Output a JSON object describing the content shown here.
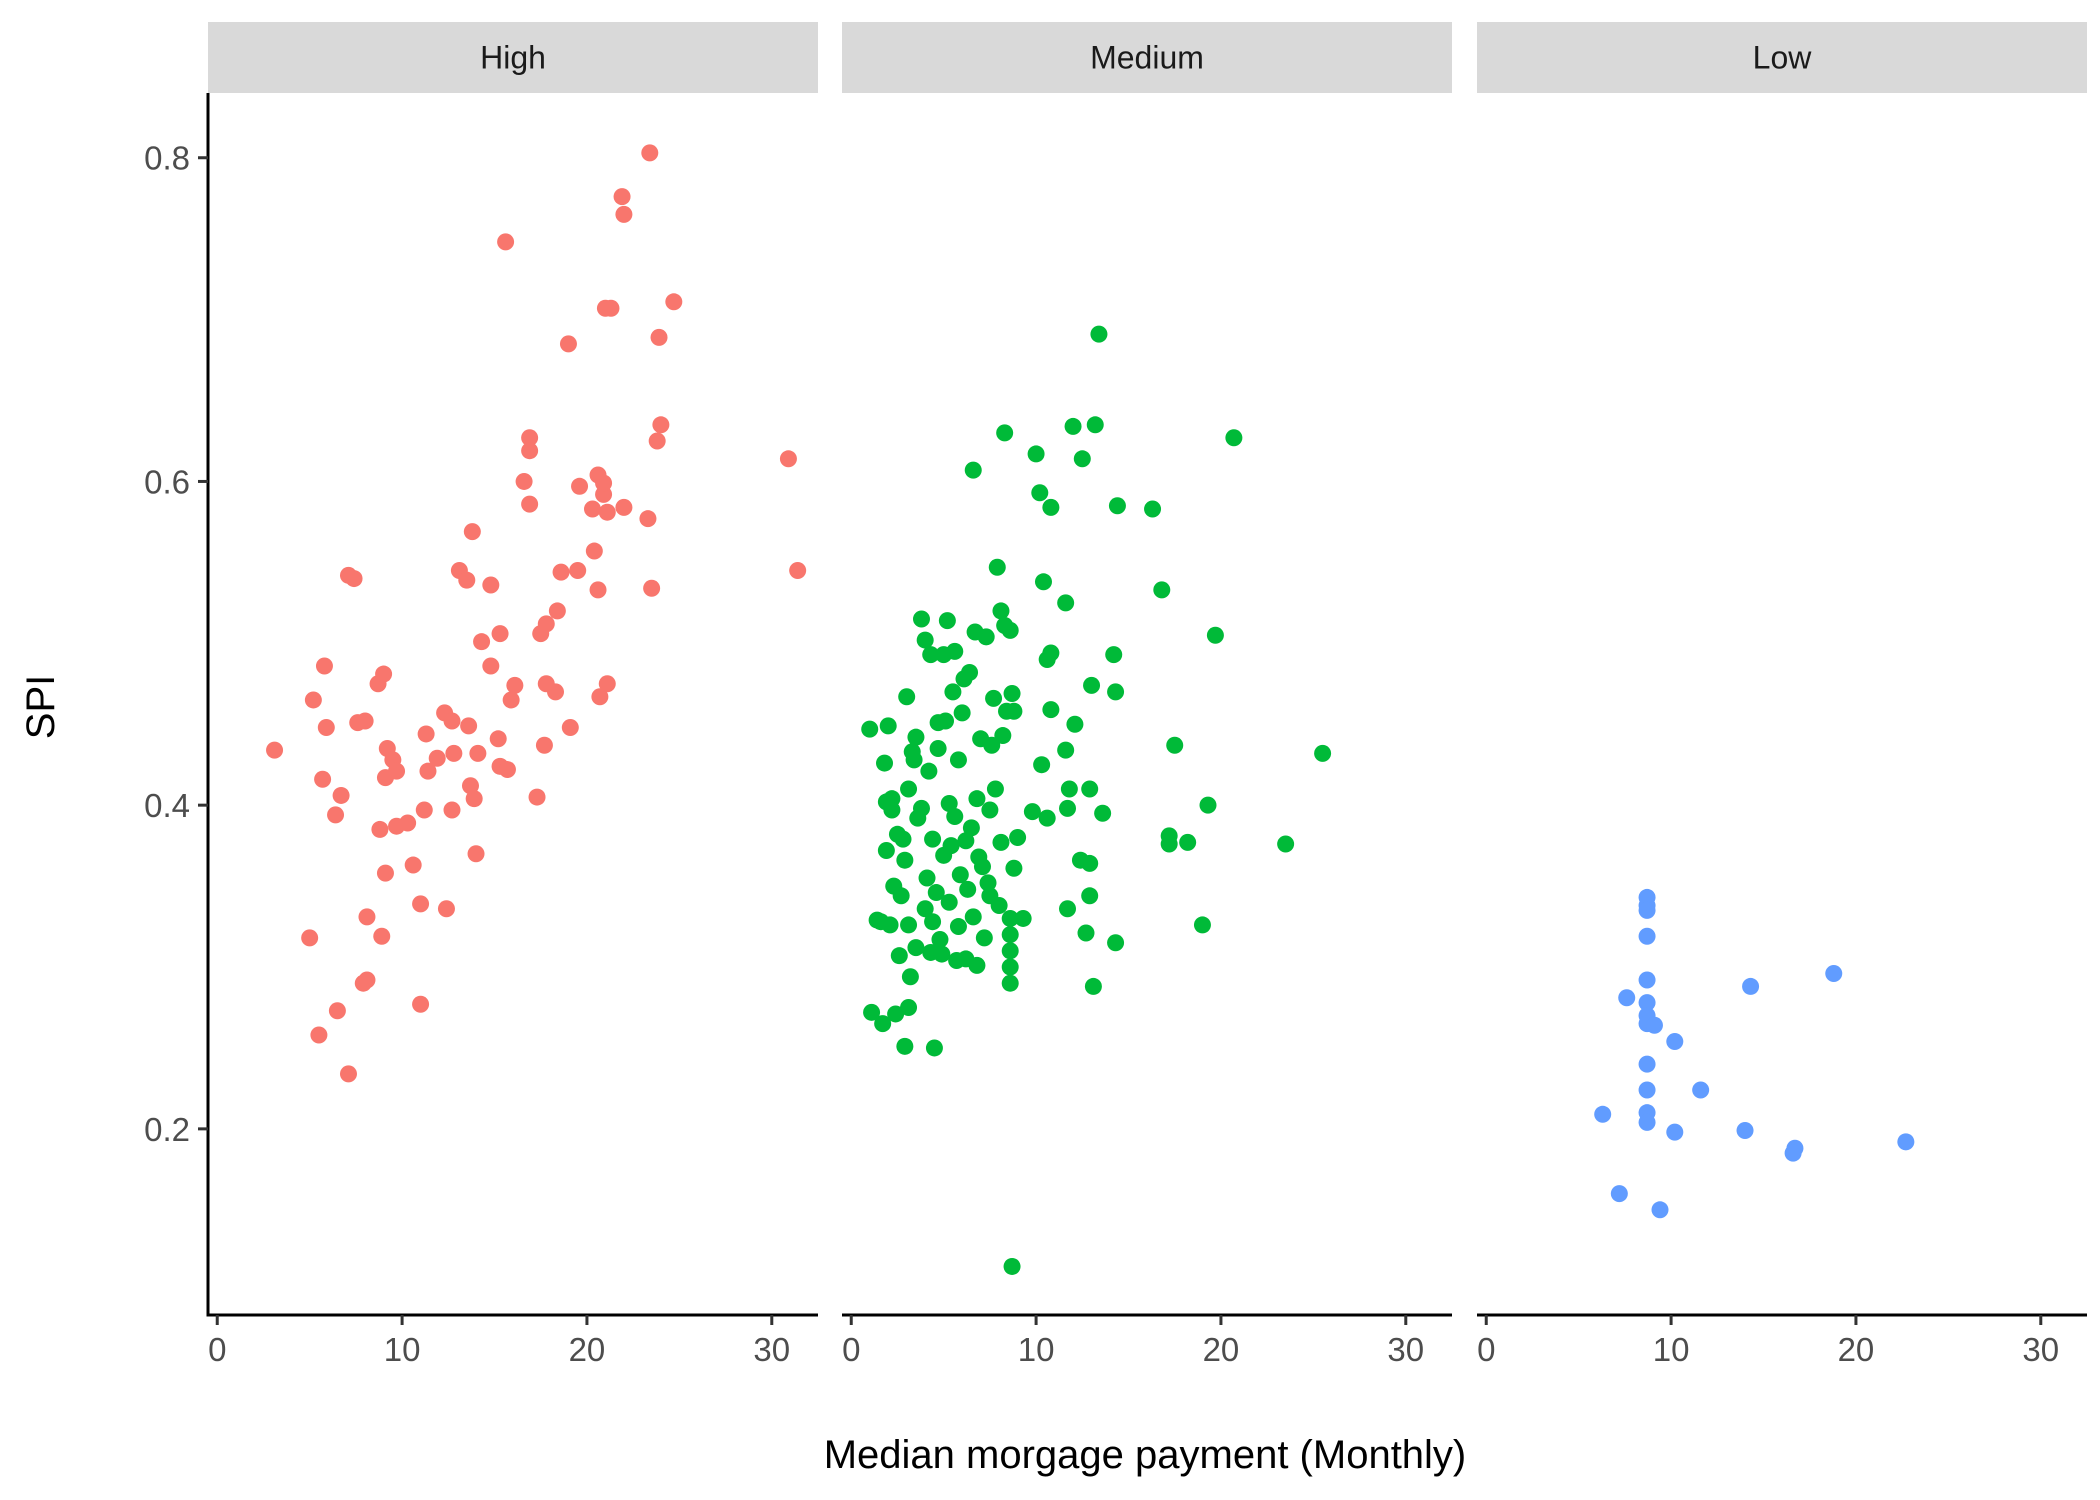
{
  "chart_data": {
    "type": "scatter",
    "title": "",
    "xlabel": "Median morgage payment (Monthly)",
    "ylabel": "SPI",
    "xlim": [
      -0.5,
      32.5
    ],
    "ylim": [
      0.085,
      0.84
    ],
    "x_ticks": [
      0,
      10,
      20,
      30
    ],
    "y_ticks": [
      0.2,
      0.4,
      0.6,
      0.8
    ],
    "x_tick_labels": [
      "0",
      "10",
      "20",
      "30"
    ],
    "y_tick_labels": [
      "0.2",
      "0.4",
      "0.6",
      "0.8"
    ],
    "grid": false,
    "legend": "none",
    "facets": [
      {
        "name": "High",
        "color": "#F8766D",
        "points": [
          [
            3.1,
            0.434
          ],
          [
            5.2,
            0.465
          ],
          [
            5.8,
            0.486
          ],
          [
            5.9,
            0.448
          ],
          [
            5.7,
            0.416
          ],
          [
            6.4,
            0.394
          ],
          [
            6.7,
            0.406
          ],
          [
            7.1,
            0.542
          ],
          [
            7.4,
            0.54
          ],
          [
            7.6,
            0.451
          ],
          [
            8.0,
            0.452
          ],
          [
            8.7,
            0.475
          ],
          [
            9.0,
            0.481
          ],
          [
            9.2,
            0.435
          ],
          [
            9.5,
            0.428
          ],
          [
            9.1,
            0.417
          ],
          [
            9.7,
            0.421
          ],
          [
            8.8,
            0.385
          ],
          [
            9.7,
            0.387
          ],
          [
            10.3,
            0.389
          ],
          [
            9.1,
            0.358
          ],
          [
            10.6,
            0.363
          ],
          [
            11.3,
            0.444
          ],
          [
            11.4,
            0.421
          ],
          [
            11.9,
            0.429
          ],
          [
            12.3,
            0.457
          ],
          [
            12.7,
            0.452
          ],
          [
            12.8,
            0.432
          ],
          [
            13.6,
            0.449
          ],
          [
            13.7,
            0.412
          ],
          [
            14.1,
            0.432
          ],
          [
            11.2,
            0.397
          ],
          [
            12.7,
            0.397
          ],
          [
            13.9,
            0.404
          ],
          [
            14.0,
            0.37
          ],
          [
            13.1,
            0.545
          ],
          [
            13.5,
            0.539
          ],
          [
            13.8,
            0.569
          ],
          [
            14.3,
            0.501
          ],
          [
            14.8,
            0.536
          ],
          [
            14.8,
            0.486
          ],
          [
            15.3,
            0.506
          ],
          [
            15.2,
            0.441
          ],
          [
            15.3,
            0.424
          ],
          [
            15.7,
            0.422
          ],
          [
            15.6,
            0.748
          ],
          [
            15.9,
            0.465
          ],
          [
            16.1,
            0.474
          ],
          [
            16.6,
            0.6
          ],
          [
            16.9,
            0.586
          ],
          [
            16.9,
            0.627
          ],
          [
            16.9,
            0.619
          ],
          [
            17.3,
            0.405
          ],
          [
            17.5,
            0.506
          ],
          [
            17.8,
            0.512
          ],
          [
            17.7,
            0.437
          ],
          [
            17.8,
            0.475
          ],
          [
            18.3,
            0.47
          ],
          [
            18.4,
            0.52
          ],
          [
            18.6,
            0.544
          ],
          [
            19.0,
            0.685
          ],
          [
            19.1,
            0.448
          ],
          [
            19.5,
            0.545
          ],
          [
            19.6,
            0.597
          ],
          [
            20.3,
            0.583
          ],
          [
            20.4,
            0.557
          ],
          [
            20.6,
            0.533
          ],
          [
            20.6,
            0.604
          ],
          [
            20.7,
            0.467
          ],
          [
            20.9,
            0.592
          ],
          [
            20.9,
            0.599
          ],
          [
            21.1,
            0.581
          ],
          [
            21.1,
            0.475
          ],
          [
            21.0,
            0.707
          ],
          [
            21.3,
            0.707
          ],
          [
            21.9,
            0.776
          ],
          [
            22.0,
            0.765
          ],
          [
            22.0,
            0.584
          ],
          [
            23.3,
            0.577
          ],
          [
            23.4,
            0.803
          ],
          [
            23.5,
            0.534
          ],
          [
            23.8,
            0.625
          ],
          [
            23.9,
            0.689
          ],
          [
            24.0,
            0.635
          ],
          [
            24.7,
            0.711
          ],
          [
            30.9,
            0.614
          ],
          [
            31.4,
            0.545
          ],
          [
            5.0,
            0.318
          ],
          [
            5.5,
            0.258
          ],
          [
            7.1,
            0.234
          ],
          [
            6.5,
            0.273
          ],
          [
            8.1,
            0.331
          ],
          [
            7.9,
            0.29
          ],
          [
            8.1,
            0.292
          ],
          [
            8.9,
            0.319
          ],
          [
            11.0,
            0.339
          ],
          [
            11.0,
            0.277
          ],
          [
            12.4,
            0.336
          ]
        ]
      },
      {
        "name": "Medium",
        "color": "#00BA38",
        "points": [
          [
            1.0,
            0.447
          ],
          [
            1.8,
            0.426
          ],
          [
            2.0,
            0.449
          ],
          [
            1.9,
            0.372
          ],
          [
            2.2,
            0.404
          ],
          [
            2.5,
            0.382
          ],
          [
            2.9,
            0.366
          ],
          [
            3.1,
            0.41
          ],
          [
            3.3,
            0.433
          ],
          [
            3.5,
            0.442
          ],
          [
            3.8,
            0.398
          ],
          [
            4.2,
            0.421
          ],
          [
            4.4,
            0.379
          ],
          [
            4.7,
            0.435
          ],
          [
            5.1,
            0.452
          ],
          [
            5.3,
            0.401
          ],
          [
            5.6,
            0.393
          ],
          [
            5.8,
            0.428
          ],
          [
            6.2,
            0.378
          ],
          [
            6.5,
            0.386
          ],
          [
            6.8,
            0.404
          ],
          [
            7.1,
            0.362
          ],
          [
            7.5,
            0.397
          ],
          [
            7.8,
            0.41
          ],
          [
            8.1,
            0.377
          ],
          [
            8.4,
            0.458
          ],
          [
            8.8,
            0.361
          ],
          [
            9.0,
            0.38
          ],
          [
            3.0,
            0.467
          ],
          [
            3.8,
            0.515
          ],
          [
            4.0,
            0.502
          ],
          [
            4.3,
            0.493
          ],
          [
            5.0,
            0.493
          ],
          [
            5.2,
            0.514
          ],
          [
            5.6,
            0.495
          ],
          [
            6.1,
            0.478
          ],
          [
            6.4,
            0.482
          ],
          [
            6.7,
            0.507
          ],
          [
            7.3,
            0.504
          ],
          [
            7.7,
            0.466
          ],
          [
            7.9,
            0.547
          ],
          [
            8.1,
            0.52
          ],
          [
            8.3,
            0.511
          ],
          [
            8.6,
            0.508
          ],
          [
            8.7,
            0.469
          ],
          [
            8.8,
            0.458
          ],
          [
            2.3,
            0.35
          ],
          [
            2.7,
            0.344
          ],
          [
            3.1,
            0.326
          ],
          [
            3.5,
            0.312
          ],
          [
            4.0,
            0.336
          ],
          [
            4.4,
            0.328
          ],
          [
            4.8,
            0.317
          ],
          [
            5.3,
            0.34
          ],
          [
            5.8,
            0.325
          ],
          [
            6.2,
            0.305
          ],
          [
            6.6,
            0.331
          ],
          [
            7.2,
            0.318
          ],
          [
            7.5,
            0.344
          ],
          [
            8.0,
            0.338
          ],
          [
            8.6,
            0.33
          ],
          [
            8.6,
            0.32
          ],
          [
            8.6,
            0.31
          ],
          [
            8.6,
            0.3
          ],
          [
            8.6,
            0.29
          ],
          [
            1.6,
            0.328
          ],
          [
            2.1,
            0.326
          ],
          [
            2.6,
            0.307
          ],
          [
            3.2,
            0.294
          ],
          [
            4.3,
            0.309
          ],
          [
            4.9,
            0.308
          ],
          [
            5.7,
            0.304
          ],
          [
            6.8,
            0.301
          ],
          [
            1.1,
            0.272
          ],
          [
            1.7,
            0.265
          ],
          [
            2.4,
            0.271
          ],
          [
            2.9,
            0.251
          ],
          [
            3.1,
            0.275
          ],
          [
            4.5,
            0.25
          ],
          [
            1.4,
            0.329
          ],
          [
            2.8,
            0.379
          ],
          [
            3.6,
            0.392
          ],
          [
            4.1,
            0.355
          ],
          [
            4.6,
            0.346
          ],
          [
            5.0,
            0.369
          ],
          [
            5.4,
            0.375
          ],
          [
            5.9,
            0.357
          ],
          [
            6.3,
            0.348
          ],
          [
            6.9,
            0.368
          ],
          [
            7.4,
            0.352
          ],
          [
            7.0,
            0.441
          ],
          [
            7.6,
            0.437
          ],
          [
            8.2,
            0.443
          ],
          [
            6.0,
            0.457
          ],
          [
            5.5,
            0.47
          ],
          [
            4.7,
            0.451
          ],
          [
            3.4,
            0.428
          ],
          [
            2.2,
            0.397
          ],
          [
            1.9,
            0.402
          ],
          [
            9.3,
            0.33
          ],
          [
            10.2,
            0.593
          ],
          [
            10.0,
            0.617
          ],
          [
            10.8,
            0.584
          ],
          [
            10.4,
            0.538
          ],
          [
            10.6,
            0.49
          ],
          [
            10.8,
            0.494
          ],
          [
            10.8,
            0.459
          ],
          [
            10.3,
            0.425
          ],
          [
            10.6,
            0.392
          ],
          [
            9.8,
            0.396
          ],
          [
            11.6,
            0.525
          ],
          [
            12.0,
            0.634
          ],
          [
            12.5,
            0.614
          ],
          [
            13.2,
            0.635
          ],
          [
            13.4,
            0.691
          ],
          [
            12.1,
            0.45
          ],
          [
            11.6,
            0.434
          ],
          [
            11.8,
            0.41
          ],
          [
            11.7,
            0.398
          ],
          [
            12.4,
            0.366
          ],
          [
            12.9,
            0.364
          ],
          [
            12.9,
            0.41
          ],
          [
            12.9,
            0.344
          ],
          [
            13.1,
            0.288
          ],
          [
            11.7,
            0.336
          ],
          [
            12.7,
            0.321
          ],
          [
            13.0,
            0.474
          ],
          [
            13.6,
            0.395
          ],
          [
            14.4,
            0.585
          ],
          [
            14.2,
            0.493
          ],
          [
            14.3,
            0.47
          ],
          [
            14.3,
            0.315
          ],
          [
            16.3,
            0.583
          ],
          [
            16.8,
            0.533
          ],
          [
            17.5,
            0.437
          ],
          [
            17.2,
            0.381
          ],
          [
            17.2,
            0.376
          ],
          [
            18.2,
            0.377
          ],
          [
            19.0,
            0.326
          ],
          [
            19.3,
            0.4
          ],
          [
            19.7,
            0.505
          ],
          [
            20.7,
            0.627
          ],
          [
            23.5,
            0.376
          ],
          [
            25.5,
            0.432
          ],
          [
            8.7,
            0.115
          ],
          [
            6.6,
            0.607
          ],
          [
            8.3,
            0.63
          ]
        ]
      },
      {
        "name": "Low",
        "color": "#619CFF",
        "points": [
          [
            8.7,
            0.343
          ],
          [
            8.7,
            0.338
          ],
          [
            8.7,
            0.335
          ],
          [
            8.7,
            0.319
          ],
          [
            8.7,
            0.292
          ],
          [
            8.7,
            0.278
          ],
          [
            8.7,
            0.27
          ],
          [
            8.7,
            0.265
          ],
          [
            9.1,
            0.264
          ],
          [
            8.7,
            0.24
          ],
          [
            8.7,
            0.224
          ],
          [
            8.7,
            0.21
          ],
          [
            8.7,
            0.204
          ],
          [
            7.6,
            0.281
          ],
          [
            6.3,
            0.209
          ],
          [
            7.2,
            0.16
          ],
          [
            9.4,
            0.15
          ],
          [
            10.2,
            0.198
          ],
          [
            10.2,
            0.254
          ],
          [
            11.6,
            0.224
          ],
          [
            14.0,
            0.199
          ],
          [
            14.3,
            0.288
          ],
          [
            16.7,
            0.188
          ],
          [
            16.6,
            0.185
          ],
          [
            18.8,
            0.296
          ],
          [
            22.7,
            0.192
          ]
        ]
      }
    ]
  }
}
